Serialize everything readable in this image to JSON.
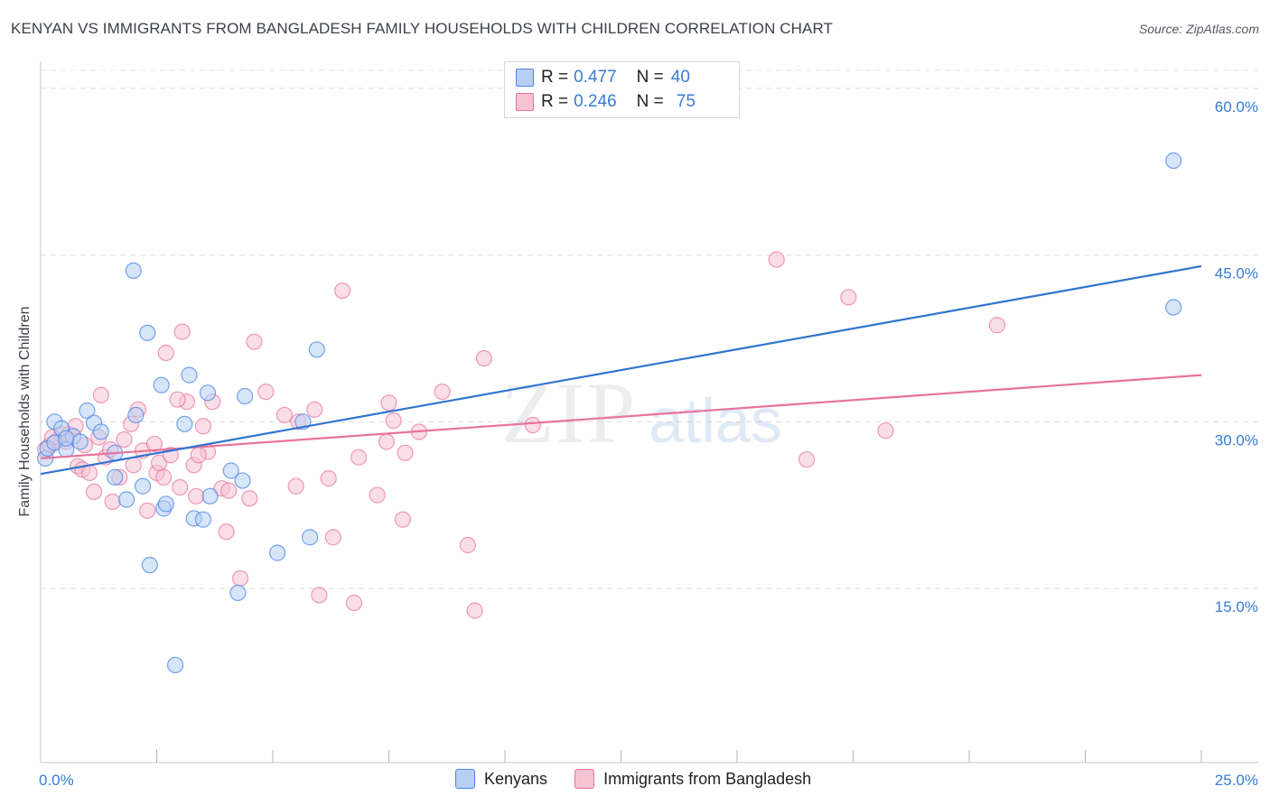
{
  "title": "KENYAN VS IMMIGRANTS FROM BANGLADESH FAMILY HOUSEHOLDS WITH CHILDREN CORRELATION CHART",
  "source": "Source: ZipAtlas.com",
  "legend": {
    "r_label": "R =",
    "n_label": "N =",
    "series1": {
      "r": "0.477",
      "n": "40"
    },
    "series2": {
      "r": "0.246",
      "n": "75"
    }
  },
  "bottom_legend": {
    "series1": "Kenyans",
    "series2": "Immigrants from Bangladesh"
  },
  "watermark": {
    "zip": "ZIP",
    "atlas": "atlas"
  },
  "chart_data": {
    "type": "scatter",
    "title": "KENYAN VS IMMIGRANTS FROM BANGLADESH FAMILY HOUSEHOLDS WITH CHILDREN CORRELATION CHART",
    "xlabel": "",
    "ylabel": "Family Households with Children",
    "xlim": [
      0,
      25
    ],
    "ylim": [
      0,
      62
    ],
    "x_tick_labels": [
      "0.0%",
      "25.0%"
    ],
    "y_ticks": [
      15,
      30,
      45,
      60
    ],
    "y_tick_labels": [
      "15.0%",
      "30.0%",
      "45.0%",
      "60.0%"
    ],
    "grid": true,
    "colors": {
      "series1": "#4a86e8",
      "series1_fill": "#b7cff3",
      "series2": "#e8729a",
      "series2_fill": "#f6c3d3",
      "axis_text": "#3a7bd5"
    },
    "series": [
      {
        "name": "Kenyans",
        "r": 0.477,
        "n": 40,
        "trend": [
          [
            0,
            25.3
          ],
          [
            25,
            44.0
          ]
        ],
        "points": [
          [
            0.1,
            26.7
          ],
          [
            0.15,
            27.6
          ],
          [
            0.3,
            28.1
          ],
          [
            0.3,
            30.0
          ],
          [
            0.45,
            29.4
          ],
          [
            0.55,
            27.5
          ],
          [
            0.7,
            28.7
          ],
          [
            0.85,
            28.2
          ],
          [
            1.0,
            31.0
          ],
          [
            1.15,
            29.9
          ],
          [
            1.3,
            29.1
          ],
          [
            1.6,
            25.0
          ],
          [
            1.6,
            27.2
          ],
          [
            1.85,
            23.0
          ],
          [
            2.0,
            43.6
          ],
          [
            2.05,
            30.6
          ],
          [
            2.2,
            24.2
          ],
          [
            2.35,
            17.1
          ],
          [
            2.3,
            38.0
          ],
          [
            2.6,
            33.3
          ],
          [
            2.65,
            22.2
          ],
          [
            2.7,
            22.6
          ],
          [
            3.1,
            29.8
          ],
          [
            3.2,
            34.2
          ],
          [
            3.3,
            21.3
          ],
          [
            3.5,
            21.2
          ],
          [
            3.6,
            32.6
          ],
          [
            3.65,
            23.3
          ],
          [
            4.1,
            25.6
          ],
          [
            4.25,
            14.6
          ],
          [
            4.35,
            24.7
          ],
          [
            4.4,
            32.3
          ],
          [
            5.1,
            18.2
          ],
          [
            5.65,
            30.0
          ],
          [
            5.8,
            19.6
          ],
          [
            5.95,
            36.5
          ],
          [
            2.9,
            8.1
          ],
          [
            24.4,
            53.5
          ],
          [
            24.4,
            40.3
          ],
          [
            0.55,
            28.5
          ]
        ]
      },
      {
        "name": "Immigrants from Bangladesh",
        "r": 0.246,
        "n": 75,
        "trend": [
          [
            0,
            26.7
          ],
          [
            25,
            34.2
          ]
        ],
        "points": [
          [
            0.1,
            27.5
          ],
          [
            0.2,
            27.9
          ],
          [
            0.35,
            28.3
          ],
          [
            0.45,
            28.9
          ],
          [
            0.6,
            28.9
          ],
          [
            0.75,
            29.6
          ],
          [
            0.8,
            26.0
          ],
          [
            0.9,
            25.7
          ],
          [
            0.95,
            27.9
          ],
          [
            1.05,
            25.4
          ],
          [
            1.15,
            23.7
          ],
          [
            1.3,
            32.4
          ],
          [
            1.4,
            26.8
          ],
          [
            1.5,
            27.5
          ],
          [
            1.55,
            22.8
          ],
          [
            1.7,
            25.0
          ],
          [
            1.8,
            28.4
          ],
          [
            1.95,
            29.8
          ],
          [
            2.0,
            26.1
          ],
          [
            2.1,
            31.1
          ],
          [
            2.2,
            27.4
          ],
          [
            2.3,
            22.0
          ],
          [
            2.45,
            28.0
          ],
          [
            2.5,
            25.4
          ],
          [
            2.55,
            26.3
          ],
          [
            2.65,
            25.0
          ],
          [
            2.7,
            36.2
          ],
          [
            2.8,
            27.0
          ],
          [
            3.0,
            24.1
          ],
          [
            3.05,
            38.1
          ],
          [
            3.15,
            31.8
          ],
          [
            3.3,
            26.1
          ],
          [
            3.35,
            23.3
          ],
          [
            3.5,
            29.6
          ],
          [
            3.6,
            27.3
          ],
          [
            3.7,
            31.8
          ],
          [
            3.9,
            24.0
          ],
          [
            4.0,
            20.1
          ],
          [
            4.05,
            23.8
          ],
          [
            4.3,
            15.9
          ],
          [
            4.5,
            23.1
          ],
          [
            4.6,
            37.2
          ],
          [
            4.85,
            32.7
          ],
          [
            5.25,
            30.6
          ],
          [
            5.5,
            24.2
          ],
          [
            5.55,
            30.0
          ],
          [
            5.9,
            31.1
          ],
          [
            6.0,
            14.4
          ],
          [
            6.2,
            24.9
          ],
          [
            6.3,
            19.6
          ],
          [
            6.5,
            41.8
          ],
          [
            6.75,
            13.7
          ],
          [
            6.85,
            26.8
          ],
          [
            7.25,
            23.4
          ],
          [
            7.5,
            31.7
          ],
          [
            7.45,
            28.2
          ],
          [
            7.6,
            30.1
          ],
          [
            7.8,
            21.2
          ],
          [
            7.85,
            27.2
          ],
          [
            8.15,
            29.1
          ],
          [
            8.65,
            32.7
          ],
          [
            9.2,
            18.9
          ],
          [
            9.35,
            13.0
          ],
          [
            9.55,
            35.7
          ],
          [
            10.6,
            29.7
          ],
          [
            15.85,
            44.6
          ],
          [
            16.5,
            26.6
          ],
          [
            17.4,
            41.2
          ],
          [
            18.2,
            29.2
          ],
          [
            20.6,
            38.7
          ],
          [
            0.25,
            28.6
          ],
          [
            0.55,
            28.2
          ],
          [
            1.25,
            28.6
          ],
          [
            2.95,
            32.0
          ],
          [
            3.4,
            27.0
          ]
        ]
      }
    ]
  }
}
